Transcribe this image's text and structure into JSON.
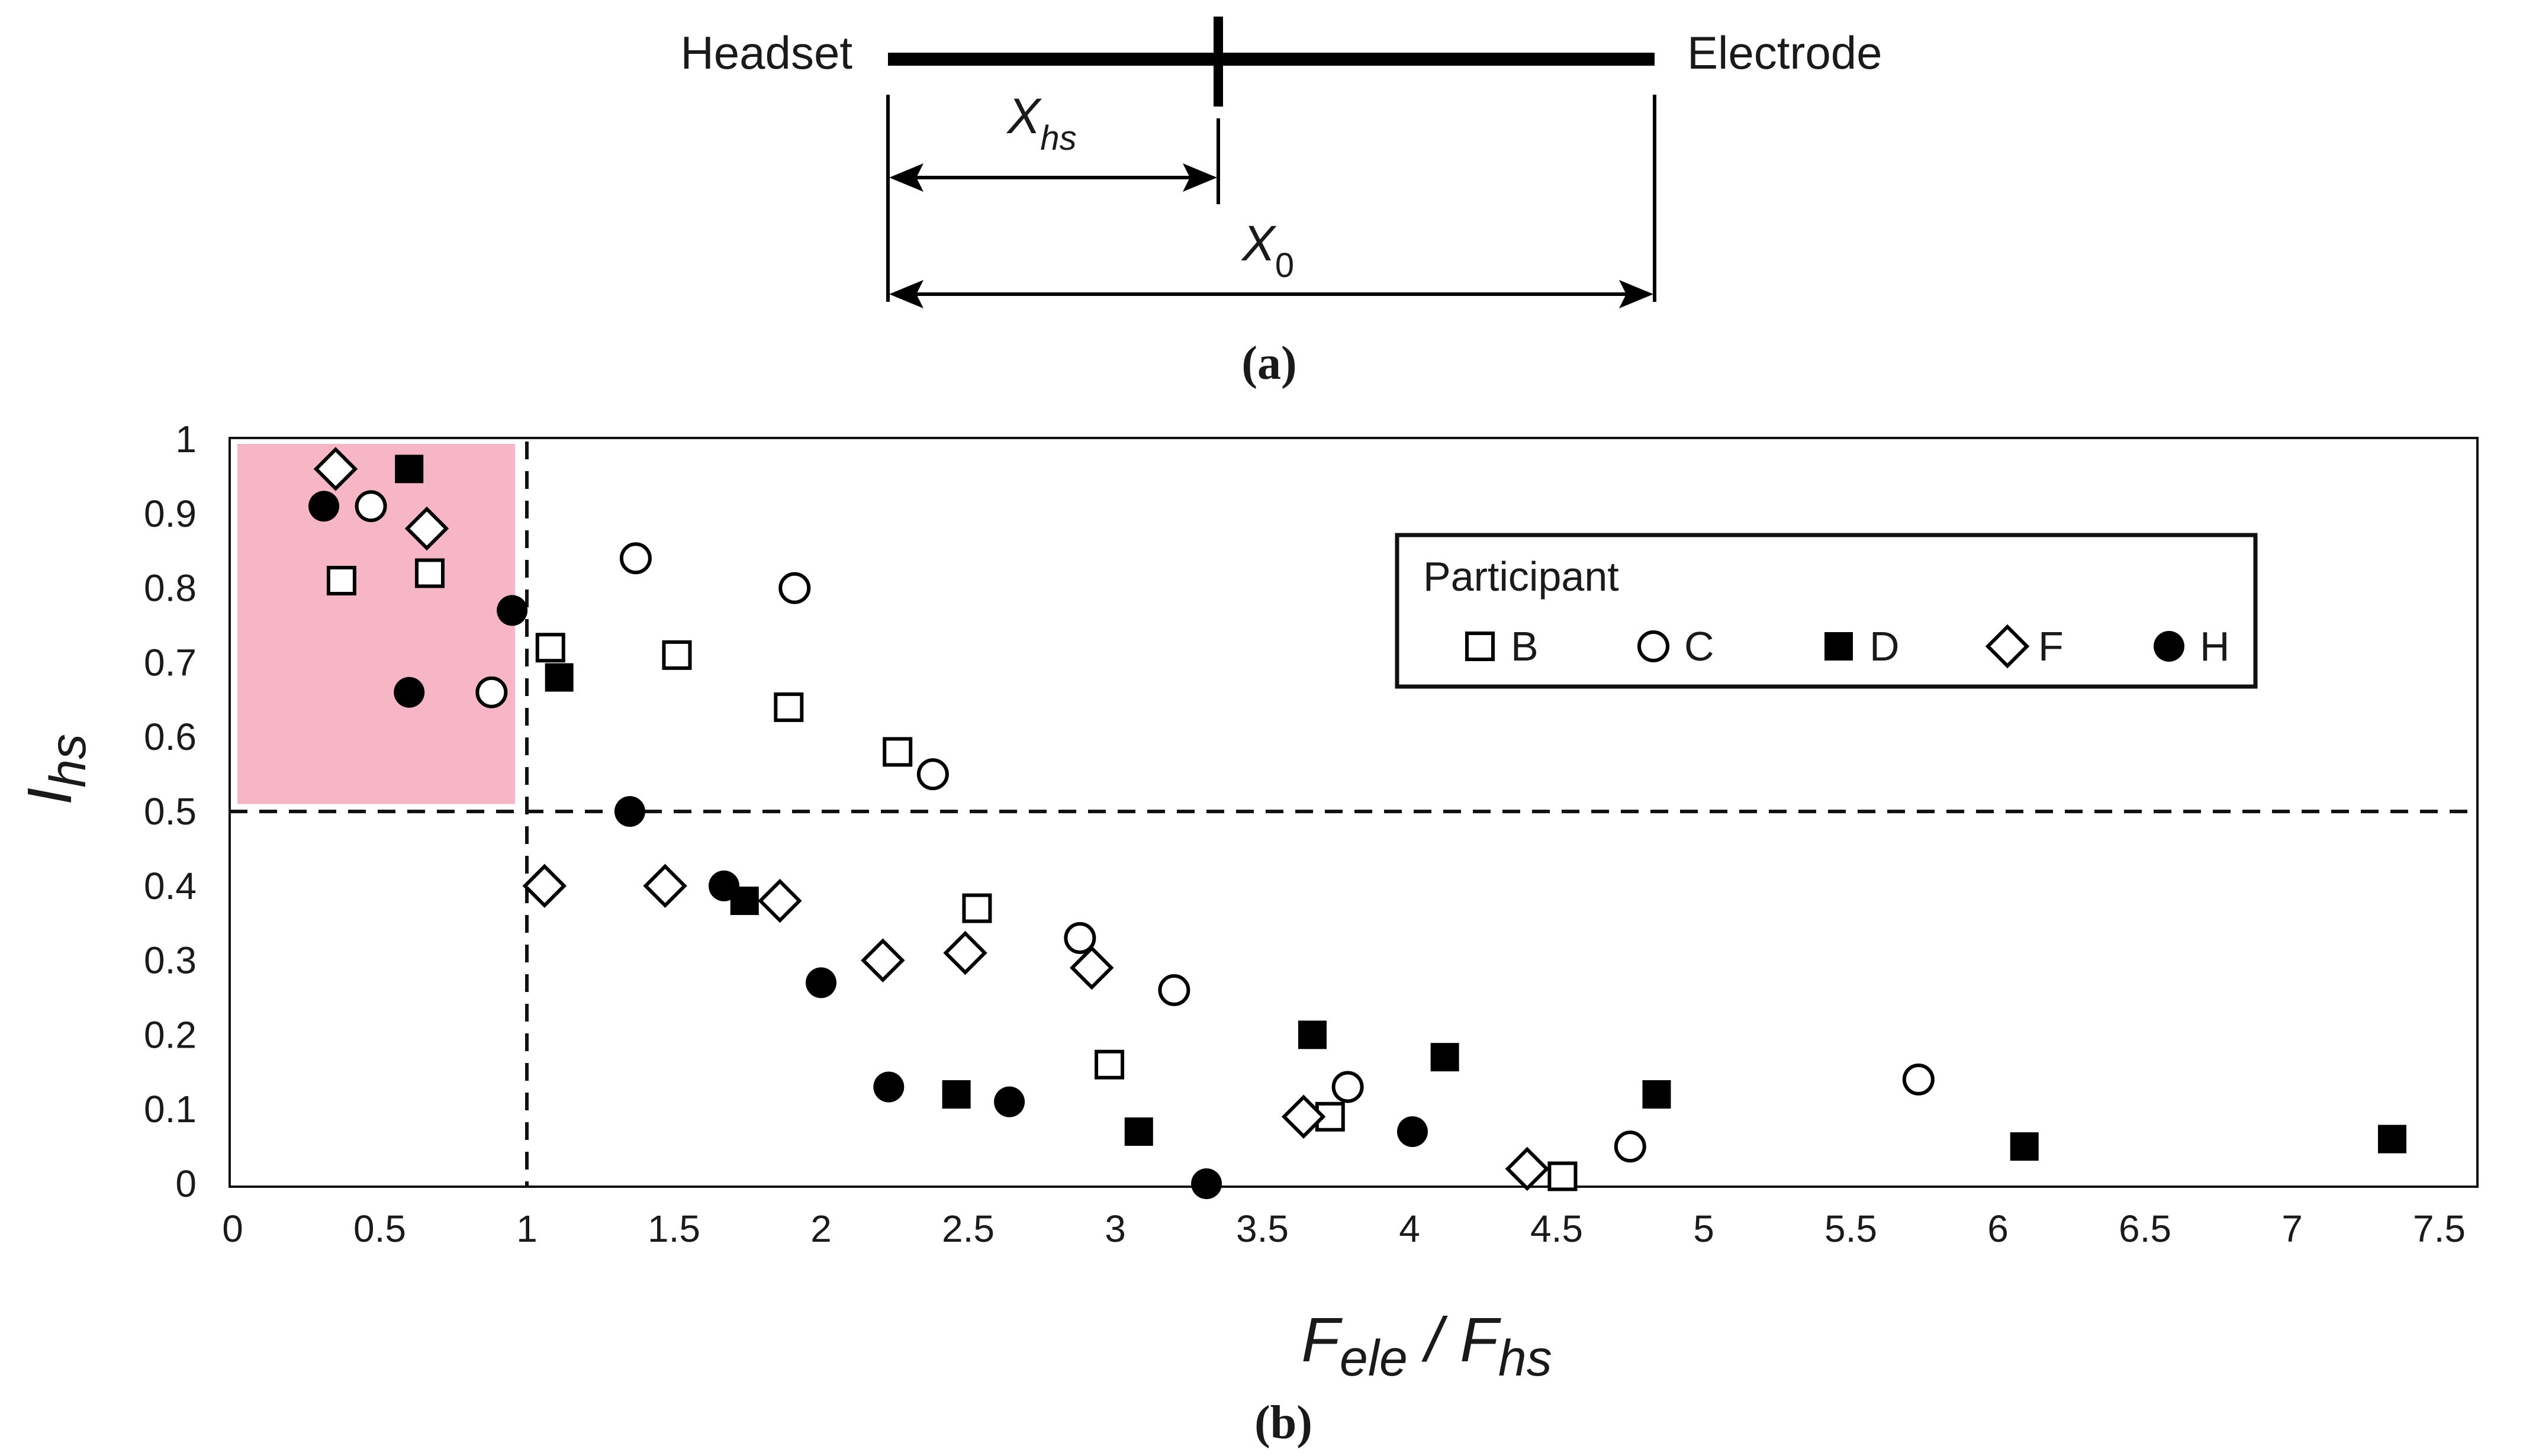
{
  "diagram": {
    "left_label": "Headset",
    "right_label": "Electrode",
    "xhs_label_main": "X",
    "xhs_label_sub": "hs",
    "x0_label_main": "X",
    "x0_label_sub": "0",
    "caption": "(a)"
  },
  "chart_data": {
    "type": "scatter",
    "caption": "(b)",
    "xlabel_main_1": "F",
    "xlabel_sub_1": "ele",
    "xlabel_sep": " / ",
    "xlabel_main_2": "F",
    "xlabel_sub_2": "hs",
    "ylabel_main": "I",
    "ylabel_sub": "hs",
    "xlim": [
      0,
      7.6
    ],
    "ylim": [
      0,
      1
    ],
    "x_ticks": [
      "0",
      "0.5",
      "1",
      "1.5",
      "2",
      "2.5",
      "3",
      "3.5",
      "4",
      "4.5",
      "5",
      "5.5",
      "6",
      "6.5",
      "7",
      "7.5"
    ],
    "y_ticks": [
      "0",
      "0.1",
      "0.2",
      "0.3",
      "0.4",
      "0.5",
      "0.6",
      "0.7",
      "0.8",
      "0.9",
      "1"
    ],
    "grid": false,
    "reference_lines": {
      "x": 1.0,
      "y": 0.5
    },
    "highlight_region": {
      "x": [
        0,
        0.96
      ],
      "y": [
        0.51,
        1.0
      ],
      "color": "#f7b6c6"
    },
    "legend": {
      "title": "Participant",
      "position": "top-right",
      "entries": [
        {
          "name": "B",
          "marker": "square-open"
        },
        {
          "name": "C",
          "marker": "circle-open"
        },
        {
          "name": "D",
          "marker": "square-filled"
        },
        {
          "name": "F",
          "marker": "diamond-open"
        },
        {
          "name": "H",
          "marker": "circle-filled"
        }
      ]
    },
    "series": [
      {
        "name": "B",
        "marker": "square-open",
        "points": [
          [
            0.37,
            0.81
          ],
          [
            0.67,
            0.82
          ],
          [
            1.08,
            0.72
          ],
          [
            1.51,
            0.71
          ],
          [
            1.89,
            0.64
          ],
          [
            2.26,
            0.58
          ],
          [
            2.53,
            0.37
          ],
          [
            2.98,
            0.16
          ],
          [
            3.73,
            0.09
          ],
          [
            4.52,
            0.01
          ]
        ]
      },
      {
        "name": "C",
        "marker": "circle-open",
        "points": [
          [
            0.47,
            0.91
          ],
          [
            0.88,
            0.66
          ],
          [
            1.37,
            0.84
          ],
          [
            1.91,
            0.8
          ],
          [
            2.38,
            0.55
          ],
          [
            2.88,
            0.33
          ],
          [
            3.2,
            0.26
          ],
          [
            3.79,
            0.13
          ],
          [
            4.75,
            0.05
          ],
          [
            5.73,
            0.14
          ]
        ]
      },
      {
        "name": "D",
        "marker": "square-filled",
        "points": [
          [
            0.6,
            0.96
          ],
          [
            1.11,
            0.68
          ],
          [
            1.74,
            0.38
          ],
          [
            2.46,
            0.12
          ],
          [
            3.08,
            0.07
          ],
          [
            3.67,
            0.2
          ],
          [
            4.12,
            0.17
          ],
          [
            4.84,
            0.12
          ],
          [
            6.09,
            0.05
          ],
          [
            7.34,
            0.06
          ]
        ]
      },
      {
        "name": "F",
        "marker": "diamond-open",
        "points": [
          [
            0.35,
            0.96
          ],
          [
            0.66,
            0.88
          ],
          [
            1.06,
            0.4
          ],
          [
            1.47,
            0.4
          ],
          [
            1.86,
            0.38
          ],
          [
            2.21,
            0.3
          ],
          [
            2.49,
            0.31
          ],
          [
            2.92,
            0.29
          ],
          [
            3.64,
            0.09
          ],
          [
            4.4,
            0.02
          ]
        ]
      },
      {
        "name": "H",
        "marker": "circle-filled",
        "points": [
          [
            0.31,
            0.91
          ],
          [
            0.6,
            0.66
          ],
          [
            0.95,
            0.77
          ],
          [
            1.35,
            0.5
          ],
          [
            1.67,
            0.4
          ],
          [
            2.0,
            0.27
          ],
          [
            2.23,
            0.13
          ],
          [
            2.64,
            0.11
          ],
          [
            3.31,
            0.0
          ],
          [
            4.01,
            0.07
          ]
        ]
      }
    ]
  }
}
